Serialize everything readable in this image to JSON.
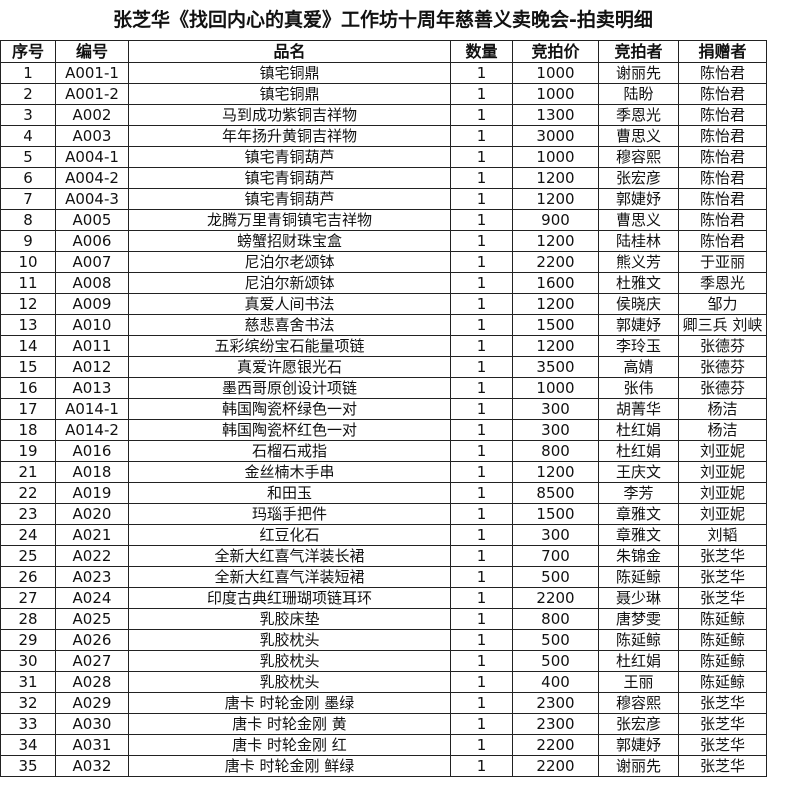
{
  "header": {
    "title": "张芝华《找回内心的真爱》工作坊十周年慈善义卖晚会-拍卖明细"
  },
  "table": {
    "columns": [
      "序号",
      "编号",
      "品名",
      "数量",
      "竞拍价",
      "竞拍者",
      "捐赠者"
    ],
    "rows": [
      [
        1,
        "A001-1",
        "镇宅铜鼎",
        1,
        1000,
        "谢丽先",
        "陈怡君"
      ],
      [
        2,
        "A001-2",
        "镇宅铜鼎",
        1,
        1000,
        "陆盼",
        "陈怡君"
      ],
      [
        3,
        "A002",
        "马到成功紫铜吉祥物",
        1,
        1300,
        "季恩光",
        "陈怡君"
      ],
      [
        4,
        "A003",
        "年年扬升黄铜吉祥物",
        1,
        3000,
        "曹思义",
        "陈怡君"
      ],
      [
        5,
        "A004-1",
        "镇宅青铜葫芦",
        1,
        1000,
        "穆容熙",
        "陈怡君"
      ],
      [
        6,
        "A004-2",
        "镇宅青铜葫芦",
        1,
        1200,
        "张宏彦",
        "陈怡君"
      ],
      [
        7,
        "A004-3",
        "镇宅青铜葫芦",
        1,
        1200,
        "郭婕妤",
        "陈怡君"
      ],
      [
        8,
        "A005",
        "龙腾万里青铜镇宅吉祥物",
        1,
        900,
        "曹思义",
        "陈怡君"
      ],
      [
        9,
        "A006",
        "螃蟹招财珠宝盒",
        1,
        1200,
        "陆桂林",
        "陈怡君"
      ],
      [
        10,
        "A007",
        "尼泊尔老颂钵",
        1,
        2200,
        "熊义芳",
        "于亚丽"
      ],
      [
        11,
        "A008",
        "尼泊尔新颂钵",
        1,
        1600,
        "杜雅文",
        "季恩光"
      ],
      [
        12,
        "A009",
        "真爱人间书法",
        1,
        1200,
        "侯晓庆",
        "邹力"
      ],
      [
        13,
        "A010",
        "慈悲喜舍书法",
        1,
        1500,
        "郭婕妤",
        "卿三兵 刘峡"
      ],
      [
        14,
        "A011",
        "五彩缤纷宝石能量项链",
        1,
        1200,
        "李玲玉",
        "张德芬"
      ],
      [
        15,
        "A012",
        "真爱许愿银光石",
        1,
        3500,
        "高婧",
        "张德芬"
      ],
      [
        16,
        "A013",
        "墨西哥原创设计项链",
        1,
        1000,
        "张伟",
        "张德芬"
      ],
      [
        17,
        "A014-1",
        "韩国陶瓷杯绿色一对",
        1,
        300,
        "胡菁华",
        "杨洁"
      ],
      [
        18,
        "A014-2",
        "韩国陶瓷杯红色一对",
        1,
        300,
        "杜红娟",
        "杨洁"
      ],
      [
        19,
        "A016",
        "石榴石戒指",
        1,
        800,
        "杜红娟",
        "刘亚妮"
      ],
      [
        21,
        "A018",
        "金丝楠木手串",
        1,
        1200,
        "王庆文",
        "刘亚妮"
      ],
      [
        22,
        "A019",
        "和田玉",
        1,
        8500,
        "李芳",
        "刘亚妮"
      ],
      [
        23,
        "A020",
        "玛瑙手把件",
        1,
        1500,
        "章雅文",
        "刘亚妮"
      ],
      [
        24,
        "A021",
        "红豆化石",
        1,
        300,
        "章雅文",
        "刘韬"
      ],
      [
        25,
        "A022",
        "全新大红喜气洋装长裙",
        1,
        700,
        "朱锦金",
        "张芝华"
      ],
      [
        26,
        "A023",
        "全新大红喜气洋装短裙",
        1,
        500,
        "陈延鲸",
        "张芝华"
      ],
      [
        27,
        "A024",
        "印度古典红珊瑚项链耳环",
        1,
        2200,
        "聂少琳",
        "张芝华"
      ],
      [
        28,
        "A025",
        "乳胶床垫",
        1,
        800,
        "唐梦雯",
        "陈延鲸"
      ],
      [
        29,
        "A026",
        "乳胶枕头",
        1,
        500,
        "陈延鲸",
        "陈延鲸"
      ],
      [
        30,
        "A027",
        "乳胶枕头",
        1,
        500,
        "杜红娟",
        "陈延鲸"
      ],
      [
        31,
        "A028",
        "乳胶枕头",
        1,
        400,
        "王丽",
        "陈延鲸"
      ],
      [
        32,
        "A029",
        "唐卡 时轮金刚 墨绿",
        1,
        2300,
        "穆容熙",
        "张芝华"
      ],
      [
        33,
        "A030",
        "唐卡 时轮金刚 黄",
        1,
        2300,
        "张宏彦",
        "张芝华"
      ],
      [
        34,
        "A031",
        "唐卡 时轮金刚 红",
        1,
        2200,
        "郭婕妤",
        "张芝华"
      ],
      [
        35,
        "A032",
        "唐卡 时轮金刚 鲜绿",
        1,
        2200,
        "谢丽先",
        "张芝华"
      ]
    ]
  }
}
